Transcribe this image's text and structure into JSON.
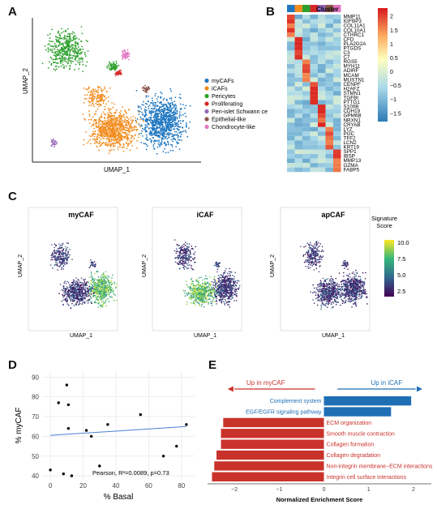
{
  "panels": {
    "A": "A",
    "B": "B",
    "C": "C",
    "D": "D",
    "E": "E"
  },
  "panelA": {
    "xlabel": "UMAP_1",
    "ylabel": "UMAP_2",
    "legend": [
      {
        "label": "myCAFs",
        "color": "#1f77c0"
      },
      {
        "label": "iCAFs",
        "color": "#f28c1e"
      },
      {
        "label": "Pericytes",
        "color": "#2ca02c"
      },
      {
        "label": "Proliferating",
        "color": "#d62728"
      },
      {
        "label": "Peri-islet Schwann cells",
        "color": "#9467bd"
      },
      {
        "label": "Epithelial-like",
        "color": "#8c564b"
      },
      {
        "label": "Chondrocyte-like",
        "color": "#e377c2"
      }
    ]
  },
  "panelB": {
    "cluster_label": "Cluster",
    "cluster_colors": [
      "#1f77c0",
      "#f28c1e",
      "#2ca02c",
      "#d62728",
      "#9467bd",
      "#8c564b",
      "#e377c2"
    ],
    "genes": [
      "MMP11",
      "IGFBP3",
      "COL11A1",
      "COL10A1",
      "CTHRC1",
      "CFD",
      "PLA2G2A",
      "PTGDS",
      "C3",
      "C7",
      "RGS5",
      "MYH11",
      "ADIRF",
      "MCAM",
      "MUSTN1",
      "CENPF",
      "H2AFZ",
      "STMN1",
      "TGFBI",
      "PTTG1",
      "S100B",
      "CDH19",
      "GPM6B",
      "NRXN1",
      "CRYAB",
      "LYZ",
      "PGC",
      "TFF2",
      "LCN2",
      "KRT19",
      "SPP1",
      "IBSP",
      "MMP13",
      "GZMA",
      "FABP5"
    ],
    "colorbar_ticks": [
      "2",
      "1.5",
      "1",
      "0.5",
      "0",
      "−0.5",
      "−1",
      "−1.5"
    ],
    "colorbar_values": [
      2,
      1.5,
      1,
      0.5,
      0,
      -0.5,
      -1,
      -1.5
    ],
    "vmin": -1.8,
    "vmax": 2.3
  },
  "panelC": {
    "titles": [
      "myCAF",
      "iCAF",
      "apCAF"
    ],
    "xlabel": "UMAP_1",
    "ylabel": "UMAP_2",
    "legend_title": "Signature\nScore",
    "legend_title_1": "Signature",
    "legend_title_2": "Score",
    "legend_ticks": [
      "10.0",
      "7.5",
      "5.0",
      "2.5"
    ]
  },
  "chart_data": [
    {
      "type": "scatter",
      "panel": "D",
      "xlabel": "% Basal",
      "ylabel": "% myCAF",
      "xlim": [
        -5,
        88
      ],
      "ylim": [
        38,
        93
      ],
      "xticks": [
        0,
        20,
        40,
        60,
        80
      ],
      "yticks": [
        40,
        50,
        60,
        70,
        80,
        90
      ],
      "points": [
        [
          0,
          43
        ],
        [
          5,
          77
        ],
        [
          10,
          86
        ],
        [
          11,
          76
        ],
        [
          11,
          64
        ],
        [
          8,
          41
        ],
        [
          13,
          40
        ],
        [
          22,
          63
        ],
        [
          25,
          60
        ],
        [
          30,
          45
        ],
        [
          35,
          66
        ],
        [
          55,
          71
        ],
        [
          69,
          50
        ],
        [
          77,
          55
        ],
        [
          83,
          66
        ]
      ],
      "fit_line": {
        "x": [
          0,
          83
        ],
        "y": [
          60.5,
          65
        ]
      },
      "annotation": "Pearson, R²=0.0089, p=0.73",
      "grid": true
    },
    {
      "type": "bar",
      "panel": "E",
      "orientation": "horizontal",
      "xlabel": "Normalized Enrichment Score",
      "xlim": [
        -2.6,
        2.4
      ],
      "xticks": [
        -2,
        -1,
        0,
        1,
        2
      ],
      "xtick_labels": [
        "−2",
        "−1",
        "0",
        "1",
        "2"
      ],
      "up_left": "Up in myCAF",
      "up_right": "Up in iCAF",
      "categories": [
        "Complement system",
        "EGF/EGFR signaling pathway",
        "ECM organization",
        "Smooth muscle contraction",
        "Collagen formation",
        "Collagen degradation",
        "Non-integrin membrane−ECM interactions",
        "Integrin cell surface interactions"
      ],
      "values": [
        1.95,
        1.5,
        -2.25,
        -2.3,
        -2.3,
        -2.4,
        -2.45,
        -2.5
      ],
      "colors": {
        "positive": "#1f6fb5",
        "negative": "#c9322a"
      }
    }
  ]
}
